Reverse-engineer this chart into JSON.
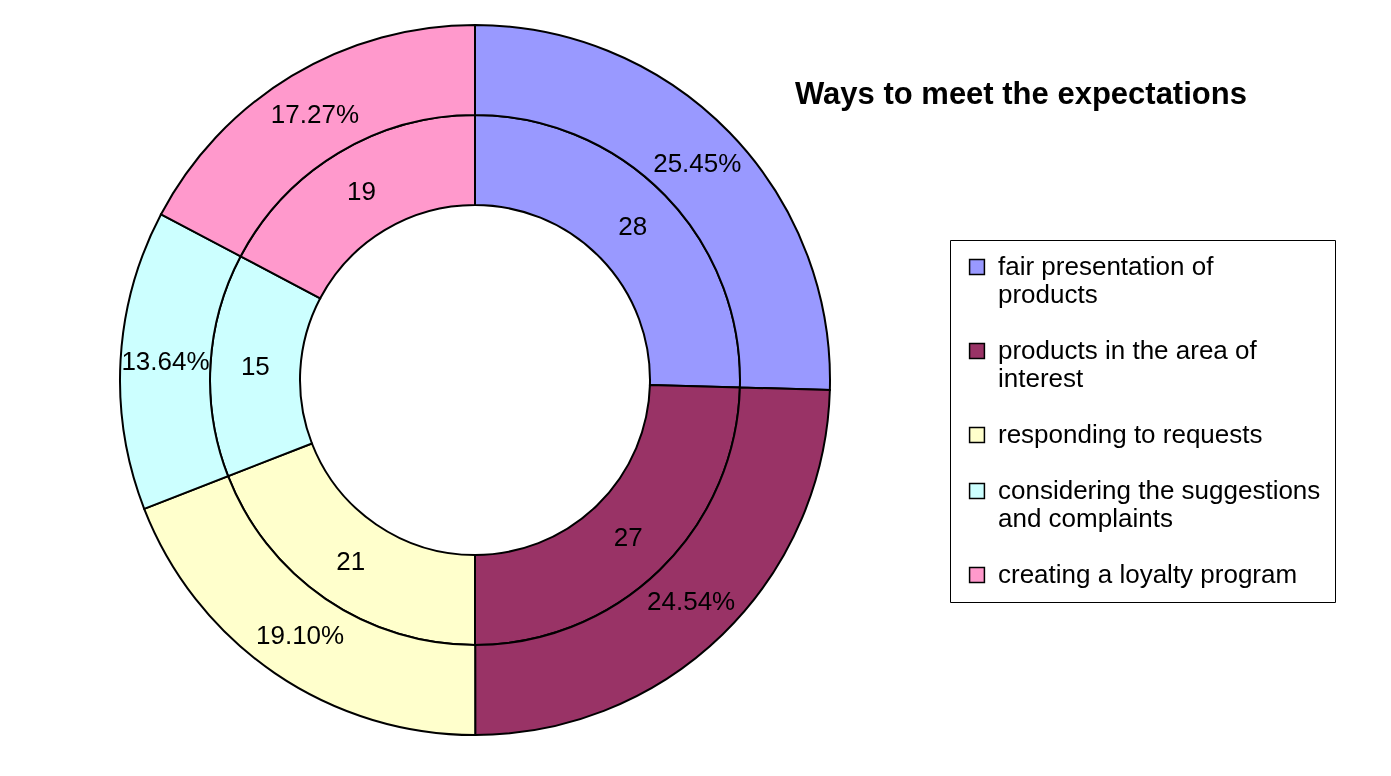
{
  "chart_data": {
    "type": "donut",
    "title": "Ways to meet the expectations",
    "categories": [
      "fair presentation of products",
      "products in the area of interest",
      "responding to requests",
      "considering the suggestions and complaints",
      "creating a loyalty program"
    ],
    "colors": [
      "#9999ff",
      "#993366",
      "#ffffcc",
      "#ccffff",
      "#ff99cc"
    ],
    "series": [
      {
        "values": [
          28,
          27,
          21,
          15,
          19
        ],
        "value_labels": [
          "28",
          "27",
          "21",
          "15",
          "19"
        ]
      },
      {
        "values": [
          25.45,
          24.54,
          19.1,
          13.64,
          17.27
        ],
        "value_labels": [
          "25.45%",
          "24.54%",
          "19.10%",
          "13.64%",
          "17.27%"
        ]
      }
    ],
    "legend": "right"
  }
}
